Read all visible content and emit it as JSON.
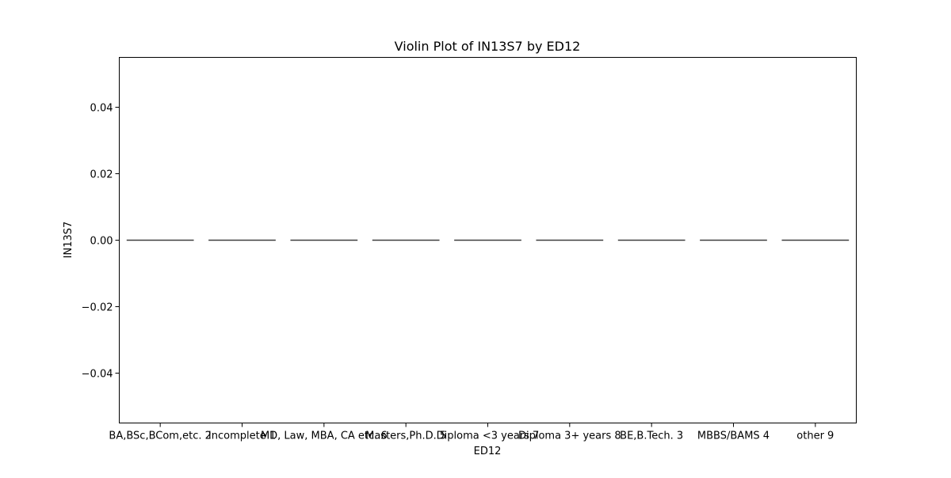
{
  "chart_data": {
    "type": "violin",
    "title": "Violin Plot of IN13S7 by ED12",
    "xlabel": "ED12",
    "ylabel": "IN13S7",
    "categories": [
      "BA,BSc,BCom,etc. 2",
      "Incomplete 1",
      "MD, Law, MBA, CA etc. 6",
      "Masters,Ph.D. 5",
      "Diploma <3 years 7",
      "Diploma 3+ years 8",
      "BE,B.Tech. 3",
      "MBBS/BAMS 4",
      "other 9"
    ],
    "values": [
      0,
      0,
      0,
      0,
      0,
      0,
      0,
      0,
      0
    ],
    "ylim": [
      -0.055,
      0.055
    ],
    "yticks": [
      -0.04,
      -0.02,
      0.0,
      0.02,
      0.04
    ],
    "ytick_labels": [
      "−0.04",
      "−0.02",
      "0.00",
      "0.02",
      "0.04"
    ],
    "grid": false,
    "colors": {
      "violin_line": "#3f3f3f",
      "axes": "#000000"
    }
  }
}
